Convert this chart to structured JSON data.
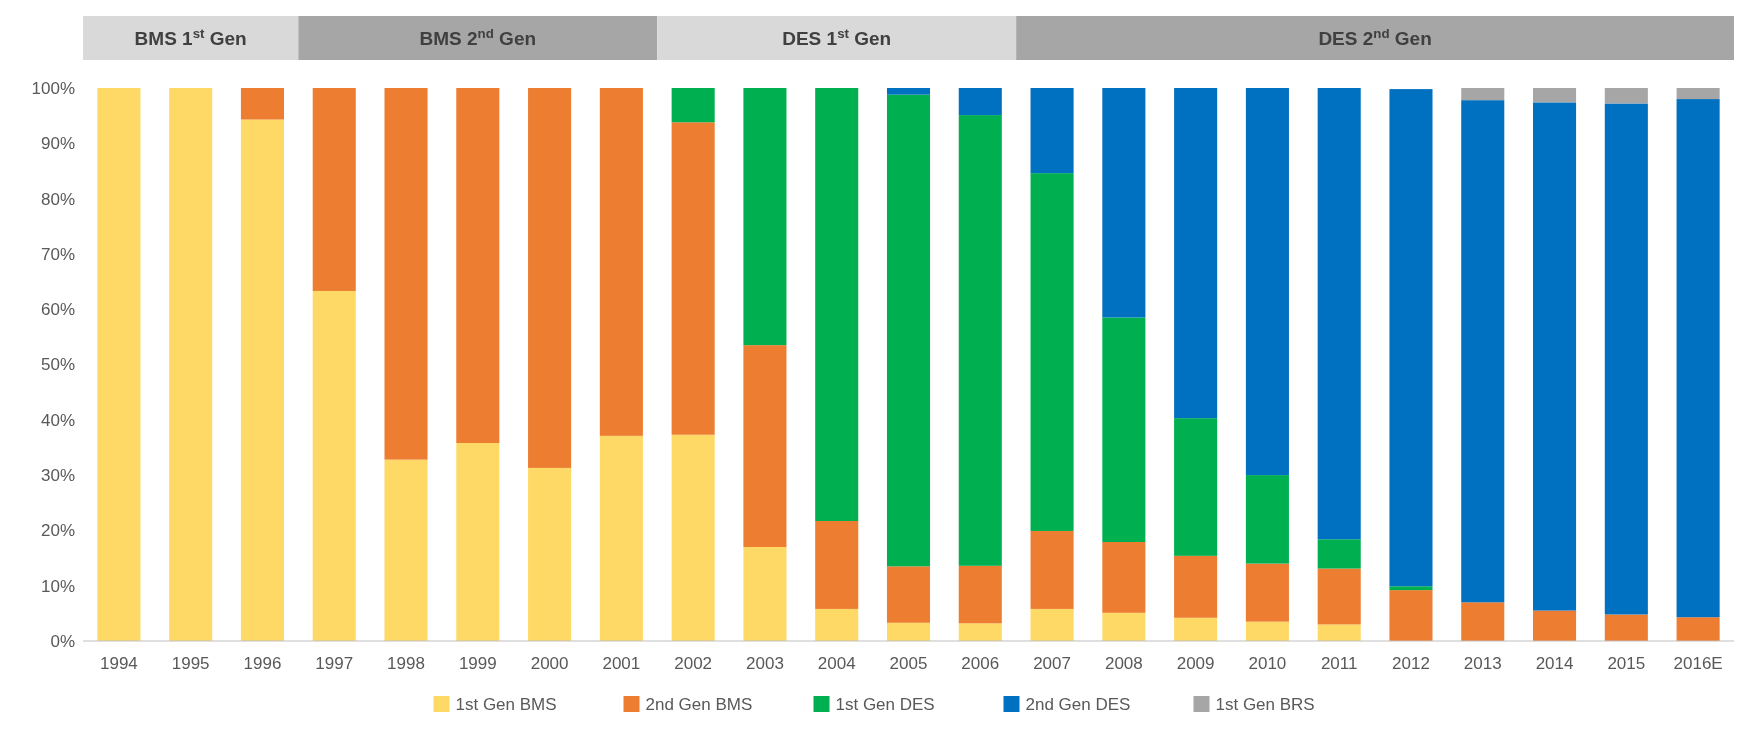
{
  "chart_data": {
    "type": "bar",
    "stacked": true,
    "categories": [
      "1994",
      "1995",
      "1996",
      "1997",
      "1998",
      "1999",
      "2000",
      "2001",
      "2002",
      "2003",
      "2004",
      "2005",
      "2006",
      "2007",
      "2008",
      "2009",
      "2010",
      "2011",
      "2012",
      "2013",
      "2014",
      "2015",
      "2016E"
    ],
    "series": [
      {
        "name": "1st Gen BMS",
        "color": "#ffd966",
        "values": [
          100,
          100,
          94.3,
          63.3,
          32.8,
          35.8,
          31.3,
          37.1,
          37.3,
          17.0,
          5.8,
          3.3,
          3.2,
          5.8,
          5.1,
          4.2,
          3.5,
          3.0,
          0,
          0,
          0,
          0,
          0
        ]
      },
      {
        "name": "2nd Gen BMS",
        "color": "#ed7d31",
        "values": [
          0,
          0,
          5.7,
          36.7,
          67.2,
          64.2,
          68.7,
          62.9,
          56.5,
          36.5,
          15.9,
          10.2,
          10.4,
          14.1,
          12.8,
          11.2,
          10.5,
          10.1,
          9.2,
          7.0,
          5.5,
          4.8,
          4.3
        ]
      },
      {
        "name": "1st Gen DES",
        "color": "#00b050",
        "values": [
          0,
          0,
          0,
          0,
          0,
          0,
          0,
          0,
          6.2,
          46.5,
          78.3,
          85.3,
          81.5,
          64.7,
          40.6,
          24.9,
          16.0,
          5.3,
          0.7,
          0,
          0,
          0,
          0
        ]
      },
      {
        "name": "2nd Gen DES",
        "color": "#0070c0",
        "values": [
          0,
          0,
          0,
          0,
          0,
          0,
          0,
          0,
          0,
          0,
          0,
          1.2,
          4.9,
          15.4,
          41.5,
          59.7,
          70.0,
          81.6,
          89.9,
          90.8,
          91.9,
          92.4,
          93.7
        ]
      },
      {
        "name": "1st Gen BRS",
        "color": "#a6a6a6",
        "values": [
          0,
          0,
          0,
          0,
          0,
          0,
          0,
          0,
          0,
          0,
          0,
          0,
          0,
          0,
          0,
          0,
          0,
          0,
          null,
          2.2,
          2.6,
          2.8,
          2.0
        ]
      }
    ],
    "ylim": [
      0,
      100
    ],
    "yticks": [
      {
        "value": 0,
        "label": "0%"
      },
      {
        "value": 10,
        "label": "10%"
      },
      {
        "value": 20,
        "label": "20%"
      },
      {
        "value": 30,
        "label": "30%"
      },
      {
        "value": 40,
        "label": "40%"
      },
      {
        "value": 50,
        "label": "50%"
      },
      {
        "value": 60,
        "label": "60%"
      },
      {
        "value": 70,
        "label": "70%"
      },
      {
        "value": 80,
        "label": "80%"
      },
      {
        "value": 90,
        "label": "90%"
      },
      {
        "value": 100,
        "label": "100%"
      }
    ],
    "annotations": [
      "BMS 1$^{st}$ Gen",
      "BMS 2$^{nd}$ Gen",
      "DES 1$^{st}$ Gen",
      "DES 2$^{nd}$ Gen"
    ],
    "grid": false,
    "legend": "bottom"
  }
}
